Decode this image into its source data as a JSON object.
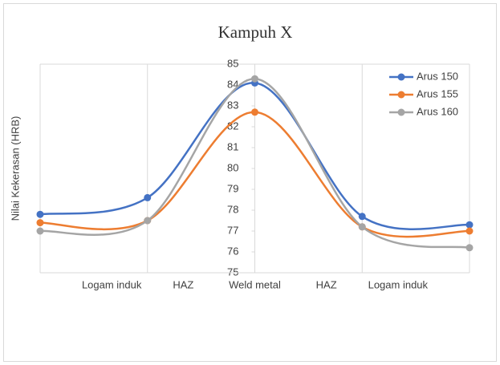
{
  "chart_data": {
    "type": "line",
    "title": "Kampuh X",
    "ylabel": "Nilai Kekerasan (HRB)",
    "x": [
      0,
      1,
      2,
      3,
      4
    ],
    "xlim": [
      0,
      4
    ],
    "categories": [
      "Logam induk",
      "HAZ",
      "Weld metal",
      "HAZ",
      "Logam induk"
    ],
    "series": [
      {
        "name": "Arus 150",
        "color": "#4472c4",
        "values": [
          77.8,
          78.6,
          84.1,
          77.7,
          77.3
        ]
      },
      {
        "name": "Arus 155",
        "color": "#ed7d31",
        "values": [
          77.4,
          77.5,
          82.7,
          77.2,
          77.0
        ]
      },
      {
        "name": "Arus 160",
        "color": "#a5a5a5",
        "values": [
          77.0,
          77.5,
          84.3,
          77.2,
          76.2
        ]
      }
    ],
    "ylim": [
      75,
      85
    ],
    "yticks": [
      75,
      76,
      77,
      78,
      79,
      80,
      81,
      82,
      83,
      84,
      85
    ],
    "grid": true,
    "legend": "top-right"
  }
}
